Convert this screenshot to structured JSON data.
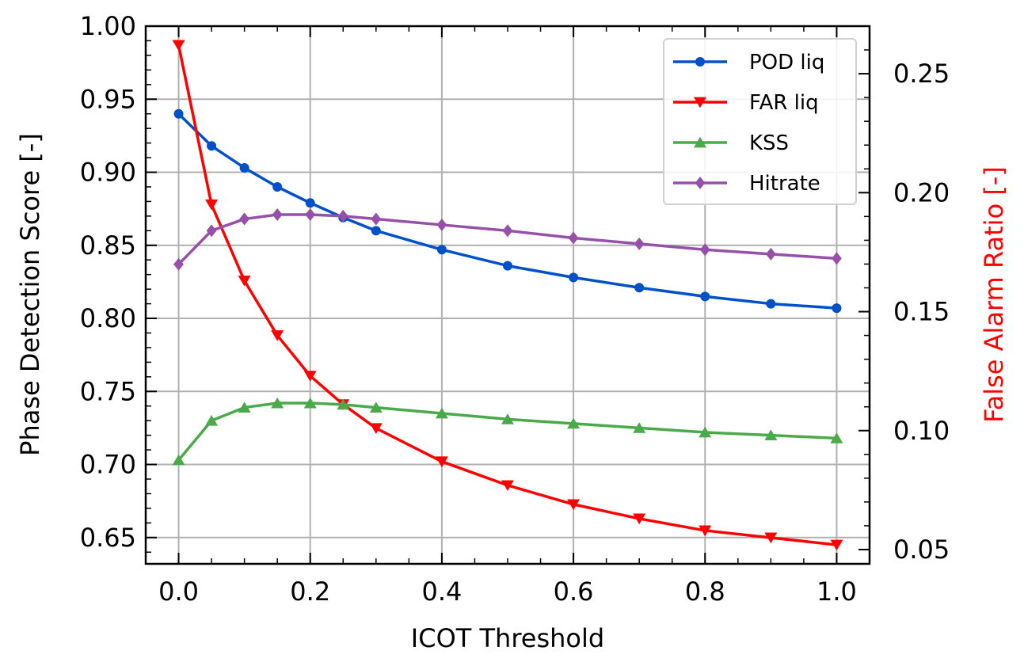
{
  "chart_data": {
    "type": "line",
    "xlabel": "ICOT Threshold",
    "ylabel": "Phase Detection Score [-]",
    "y2label": "False Alarm Ratio [-]",
    "xlim": [
      -0.05,
      1.05
    ],
    "ylim": [
      0.632,
      1.0
    ],
    "y2lim": [
      0.044,
      0.27
    ],
    "grid": true,
    "legend_position": "top-right",
    "x": [
      0.0,
      0.05,
      0.1,
      0.15,
      0.2,
      0.25,
      0.3,
      0.4,
      0.5,
      0.6,
      0.7,
      0.8,
      0.9,
      1.0
    ],
    "x_ticks": [
      {
        "value": 0.0,
        "label": "0.0"
      },
      {
        "value": 0.2,
        "label": "0.2"
      },
      {
        "value": 0.4,
        "label": "0.4"
      },
      {
        "value": 0.6,
        "label": "0.6"
      },
      {
        "value": 0.8,
        "label": "0.8"
      },
      {
        "value": 1.0,
        "label": "1.0"
      }
    ],
    "y_ticks": [
      {
        "value": 0.65,
        "label": "0.65"
      },
      {
        "value": 0.7,
        "label": "0.70"
      },
      {
        "value": 0.75,
        "label": "0.75"
      },
      {
        "value": 0.8,
        "label": "0.80"
      },
      {
        "value": 0.85,
        "label": "0.85"
      },
      {
        "value": 0.9,
        "label": "0.90"
      },
      {
        "value": 0.95,
        "label": "0.95"
      },
      {
        "value": 1.0,
        "label": "1.00"
      }
    ],
    "y2_ticks": [
      {
        "value": 0.05,
        "label": "0.05"
      },
      {
        "value": 0.1,
        "label": "0.10"
      },
      {
        "value": 0.15,
        "label": "0.15"
      },
      {
        "value": 0.2,
        "label": "0.20"
      },
      {
        "value": 0.25,
        "label": "0.25"
      }
    ],
    "series": [
      {
        "name": "POD liq",
        "axis": "left",
        "color": "#0050c8",
        "marker": "circle",
        "values": [
          0.94,
          0.918,
          0.903,
          0.89,
          0.879,
          0.869,
          0.86,
          0.847,
          0.836,
          0.828,
          0.821,
          0.815,
          0.81,
          0.807
        ]
      },
      {
        "name": "FAR liq",
        "axis": "right",
        "color": "#ff0000",
        "marker": "triangle-down",
        "values": [
          0.262,
          0.195,
          0.163,
          0.14,
          0.123,
          0.111,
          0.101,
          0.087,
          0.077,
          0.069,
          0.063,
          0.058,
          0.055,
          0.052
        ]
      },
      {
        "name": "KSS",
        "axis": "left",
        "color": "#4aaa4a",
        "marker": "triangle-up",
        "values": [
          0.703,
          0.73,
          0.739,
          0.742,
          0.742,
          0.741,
          0.739,
          0.735,
          0.731,
          0.728,
          0.725,
          0.722,
          0.72,
          0.718
        ]
      },
      {
        "name": "Hitrate",
        "axis": "left",
        "color": "#9650a8",
        "marker": "diamond",
        "values": [
          0.837,
          0.86,
          0.868,
          0.871,
          0.871,
          0.87,
          0.868,
          0.864,
          0.86,
          0.855,
          0.851,
          0.847,
          0.844,
          0.841
        ]
      }
    ]
  }
}
